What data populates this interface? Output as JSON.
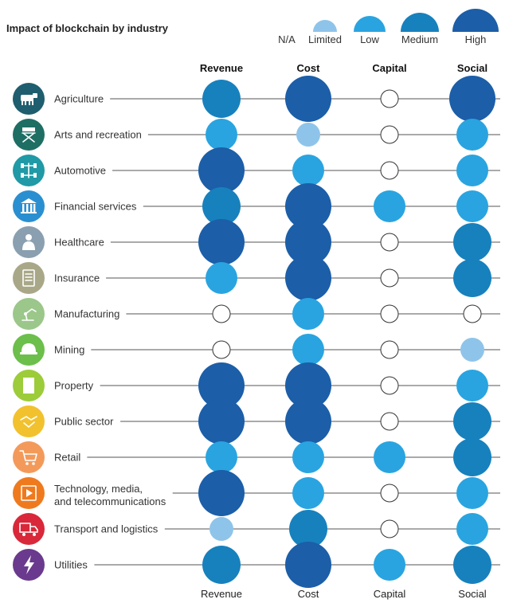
{
  "chart_data": {
    "type": "bubble-matrix",
    "title": "Impact of blockchain by industry",
    "legend": {
      "placement": "top-right",
      "levels": [
        "N/A",
        "Limited",
        "Low",
        "Medium",
        "High"
      ]
    },
    "columns": [
      "Revenue",
      "Cost",
      "Capital",
      "Social"
    ],
    "rows": [
      {
        "label": [
          "Agriculture"
        ],
        "icon": "cow-icon",
        "icon_color": "#1e5e6e",
        "values": [
          "Medium",
          "High",
          "N/A",
          "High"
        ]
      },
      {
        "label": [
          "Arts and recreation"
        ],
        "icon": "director-chair-icon",
        "icon_color": "#1e6e64",
        "values": [
          "Low",
          "Limited",
          "N/A",
          "Low"
        ]
      },
      {
        "label": [
          "Automotive"
        ],
        "icon": "car-axle-icon",
        "icon_color": "#1f9aa6",
        "values": [
          "High",
          "Low",
          "N/A",
          "Low"
        ]
      },
      {
        "label": [
          "Financial services"
        ],
        "icon": "bank-icon",
        "icon_color": "#2a8fd0",
        "values": [
          "Medium",
          "High",
          "Low",
          "Low"
        ]
      },
      {
        "label": [
          "Healthcare"
        ],
        "icon": "doctor-icon",
        "icon_color": "#8a9fb0",
        "values": [
          "High",
          "High",
          "N/A",
          "Medium"
        ]
      },
      {
        "label": [
          "Insurance"
        ],
        "icon": "document-icon",
        "icon_color": "#a8a888",
        "values": [
          "Low",
          "High",
          "N/A",
          "Medium"
        ]
      },
      {
        "label": [
          "Manufacturing"
        ],
        "icon": "robot-arm-icon",
        "icon_color": "#9bc78a",
        "values": [
          "N/A",
          "Low",
          "N/A",
          "N/A"
        ]
      },
      {
        "label": [
          "Mining"
        ],
        "icon": "hard-hat-icon",
        "icon_color": "#6cbf4a",
        "values": [
          "N/A",
          "Low",
          "N/A",
          "Limited"
        ]
      },
      {
        "label": [
          "Property"
        ],
        "icon": "building-icon",
        "icon_color": "#9ccc3a",
        "values": [
          "High",
          "High",
          "N/A",
          "Low"
        ]
      },
      {
        "label": [
          "Public sector"
        ],
        "icon": "handshake-icon",
        "icon_color": "#f2c12e",
        "values": [
          "High",
          "High",
          "N/A",
          "Medium"
        ]
      },
      {
        "label": [
          "Retail"
        ],
        "icon": "shopping-cart-icon",
        "icon_color": "#f39a5a",
        "values": [
          "Low",
          "Low",
          "Low",
          "Medium"
        ]
      },
      {
        "label": [
          "Technology, media,",
          "and telecommunications"
        ],
        "icon": "film-play-icon",
        "icon_color": "#ef7a1e",
        "values": [
          "High",
          "Low",
          "N/A",
          "Low"
        ]
      },
      {
        "label": [
          "Transport and logistics"
        ],
        "icon": "truck-icon",
        "icon_color": "#d9283a",
        "values": [
          "Limited",
          "Medium",
          "N/A",
          "Low"
        ]
      },
      {
        "label": [
          "Utilities"
        ],
        "icon": "lightning-icon",
        "icon_color": "#6a3a8e",
        "values": [
          "Medium",
          "High",
          "Low",
          "Medium"
        ]
      }
    ],
    "colors": {
      "N/A": "#ffffff",
      "Limited": "#8fc4ea",
      "Low": "#29a4e0",
      "Medium": "#1781bd",
      "High": "#1c5ea8"
    },
    "grid": false
  }
}
